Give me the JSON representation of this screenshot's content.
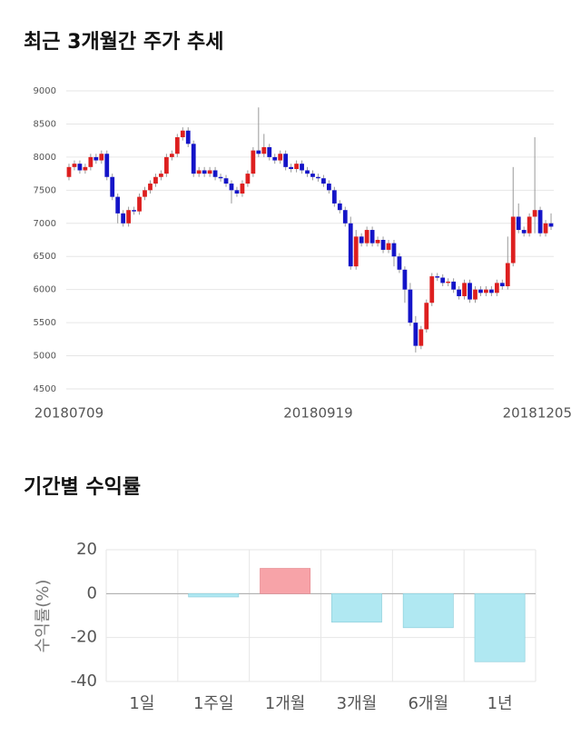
{
  "chart_data": [
    {
      "type": "candlestick",
      "title": "최근 3개월간 주가 추세",
      "categories": [
        "20180709",
        null,
        null,
        null,
        null,
        null,
        null,
        null,
        null,
        null,
        null,
        null,
        null,
        null,
        null,
        null,
        null,
        null,
        null,
        null,
        null,
        null,
        null,
        null,
        null,
        null,
        null,
        null,
        null,
        null,
        null,
        null,
        null,
        null,
        null,
        null,
        null,
        null,
        null,
        null,
        null,
        null,
        null,
        null,
        null,
        null,
        "20180919",
        null,
        null,
        null,
        null,
        null,
        null,
        null,
        null,
        null,
        null,
        null,
        null,
        null,
        null,
        null,
        null,
        null,
        null,
        null,
        null,
        null,
        null,
        null,
        null,
        null,
        null,
        null,
        null,
        null,
        null,
        null,
        null,
        null,
        null,
        null,
        null,
        null,
        null,
        null,
        null,
        null,
        null,
        "20181205"
      ],
      "open": [
        7700,
        7850,
        7900,
        7800,
        7850,
        8000,
        7950,
        8050,
        7700,
        7400,
        7150,
        7000,
        7200,
        7180,
        7400,
        7500,
        7600,
        7700,
        7750,
        8000,
        8050,
        8300,
        8400,
        8200,
        7750,
        7800,
        7750,
        7800,
        7700,
        7680,
        7600,
        7500,
        7450,
        7600,
        7750,
        8100,
        8050,
        8150,
        8000,
        7950,
        8050,
        7850,
        7820,
        7900,
        7800,
        7750,
        7700,
        7680,
        7600,
        7500,
        7300,
        7200,
        7000,
        6350,
        6800,
        6700,
        6900,
        6700,
        6750,
        6600,
        6700,
        6500,
        6300,
        6000,
        5500,
        5150,
        5400,
        5800,
        6200,
        6180,
        6100,
        6120,
        6000,
        5900,
        6100,
        5850,
        6000,
        5950,
        6000,
        5950,
        6100,
        6050,
        6400,
        7100,
        6900,
        6850,
        7100,
        7200,
        6850,
        7000
      ],
      "high": [
        7900,
        7950,
        7950,
        7900,
        8050,
        8050,
        8100,
        8100,
        7750,
        7450,
        7200,
        7250,
        7250,
        7450,
        7550,
        7650,
        7750,
        7800,
        8050,
        8100,
        8350,
        8450,
        8450,
        8250,
        7850,
        7850,
        7850,
        7850,
        7750,
        7730,
        7650,
        7550,
        7650,
        7800,
        8150,
        8750,
        8350,
        8200,
        8050,
        8100,
        8100,
        7900,
        7950,
        7950,
        7850,
        7800,
        7750,
        7730,
        7650,
        7550,
        7350,
        7250,
        7100,
        6900,
        6850,
        6950,
        6950,
        6800,
        6800,
        6750,
        6750,
        6550,
        6350,
        6100,
        5600,
        5450,
        5850,
        6250,
        6250,
        6230,
        6170,
        6170,
        6050,
        6150,
        6150,
        6050,
        6050,
        6050,
        6050,
        6150,
        6150,
        6800,
        7850,
        7300,
        6950,
        7150,
        8300,
        7250,
        7050,
        7150
      ],
      "low": [
        7650,
        7800,
        7750,
        7750,
        7800,
        7900,
        7900,
        7650,
        7350,
        7000,
        6950,
        6950,
        7130,
        7130,
        7350,
        7450,
        7550,
        7650,
        7700,
        7950,
        8000,
        8250,
        8150,
        7700,
        7700,
        7700,
        7700,
        7650,
        7630,
        7550,
        7300,
        7400,
        7400,
        7550,
        7700,
        8000,
        8000,
        7950,
        7900,
        7900,
        7800,
        7770,
        7770,
        7750,
        7700,
        7650,
        7630,
        7550,
        7450,
        7250,
        7150,
        6950,
        6300,
        6300,
        6650,
        6650,
        6650,
        6650,
        6550,
        6550,
        6350,
        6250,
        5800,
        5450,
        5050,
        5100,
        5350,
        5750,
        6130,
        6050,
        6050,
        5950,
        5850,
        5850,
        5800,
        5800,
        5900,
        5900,
        5900,
        5900,
        6000,
        6000,
        6350,
        6850,
        6800,
        6800,
        6850,
        6800,
        6800,
        6900
      ],
      "close": [
        7850,
        7900,
        7800,
        7850,
        8000,
        7950,
        8050,
        7700,
        7400,
        7150,
        7000,
        7200,
        7180,
        7400,
        7500,
        7600,
        7700,
        7750,
        8000,
        8050,
        8300,
        8400,
        8200,
        7750,
        7800,
        7750,
        7800,
        7700,
        7680,
        7600,
        7500,
        7450,
        7600,
        7750,
        8100,
        8050,
        8150,
        8000,
        7950,
        8050,
        7850,
        7820,
        7900,
        7800,
        7750,
        7700,
        7680,
        7600,
        7500,
        7300,
        7200,
        7000,
        6350,
        6800,
        6700,
        6900,
        6700,
        6750,
        6600,
        6700,
        6500,
        6300,
        6000,
        5500,
        5150,
        5400,
        5800,
        6200,
        6180,
        6100,
        6120,
        6000,
        5900,
        6100,
        5850,
        6000,
        5950,
        6000,
        5950,
        6100,
        6050,
        6400,
        7100,
        6900,
        6850,
        7100,
        7200,
        6850,
        7000,
        6950
      ],
      "up_color": "#dd1f1f",
      "down_color": "#1414c8",
      "ylim": [
        4500,
        9000
      ],
      "yticks": [
        4500,
        5000,
        5500,
        6000,
        6500,
        7000,
        7500,
        8000,
        8500,
        9000
      ],
      "grid": true
    },
    {
      "type": "bar",
      "title": "기간별 수익률",
      "y_label": "수익률(%)",
      "categories": [
        "1일",
        "1주일",
        "1개월",
        "3개월",
        "6개월",
        "1년"
      ],
      "values": [
        0,
        -1.5,
        11.5,
        -13,
        -15.5,
        -31
      ],
      "positive_color": "#f7a3a8",
      "negative_color": "#b0e8f2",
      "ylim": [
        -40,
        20
      ],
      "yticks": [
        -40,
        -20,
        0,
        20
      ],
      "grid": true
    }
  ]
}
